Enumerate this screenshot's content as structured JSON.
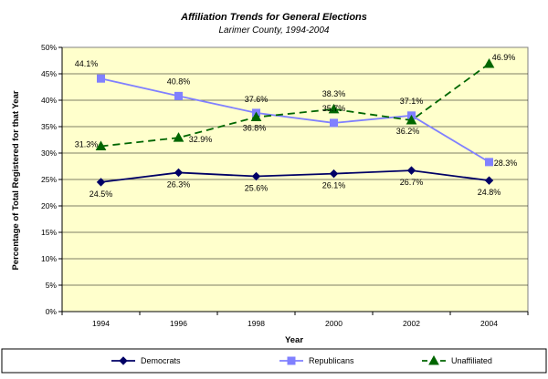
{
  "chart_data": {
    "type": "line",
    "title": "Affiliation Trends for General Elections",
    "subtitle": "Larimer County, 1994-2004",
    "xlabel": "Year",
    "ylabel": "Percentage of Total Registered for that Year",
    "categories": [
      "1994",
      "1996",
      "1998",
      "2000",
      "2002",
      "2004"
    ],
    "ylim": [
      0,
      50
    ],
    "yticks": [
      "0%",
      "5%",
      "10%",
      "15%",
      "20%",
      "25%",
      "30%",
      "35%",
      "40%",
      "45%",
      "50%"
    ],
    "grid": true,
    "plot_background": "#ffffcc",
    "legend_position": "bottom",
    "series": [
      {
        "name": "Democrats",
        "values": [
          24.5,
          26.3,
          25.6,
          26.1,
          26.7,
          24.8
        ],
        "labels": [
          "24.5%",
          "26.3%",
          "25.6%",
          "26.1%",
          "26.7%",
          "24.8%"
        ],
        "color": "#000066",
        "marker": "diamond",
        "dash": "solid"
      },
      {
        "name": "Republicans",
        "values": [
          44.1,
          40.8,
          37.6,
          35.7,
          37.1,
          28.3
        ],
        "labels": [
          "44.1%",
          "40.8%",
          "37.6%",
          "35.7%",
          "37.1%",
          "28.3%"
        ],
        "color": "#8080ff",
        "marker": "square",
        "dash": "solid"
      },
      {
        "name": "Unaffiliated",
        "values": [
          31.3,
          32.9,
          36.8,
          38.3,
          36.2,
          46.9
        ],
        "labels": [
          "31.3%",
          "32.9%",
          "36.8%",
          "38.3%",
          "36.2%",
          "46.9%"
        ],
        "color": "#006600",
        "marker": "triangle",
        "dash": "dashed"
      }
    ]
  }
}
